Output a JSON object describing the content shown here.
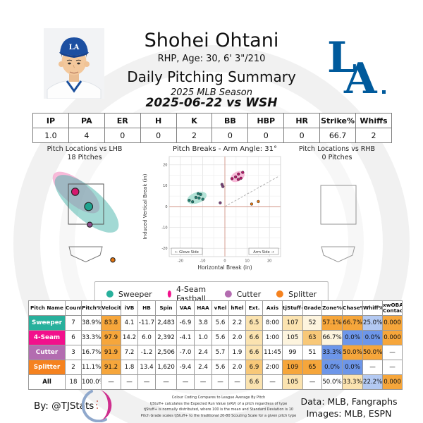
{
  "header": {
    "player_name": "Shohei Ohtani",
    "player_bio": "RHP, Age: 30, 6' 3\"/210",
    "report_title": "Daily Pitching Summary",
    "season": "2025 MLB Season",
    "game": "2025-06-22 vs WSH"
  },
  "palette": {
    "dodger_blue": "#005A9C",
    "sweeper": "#28b09c",
    "fourseam": "#f2108c",
    "cutter": "#b36cb0",
    "splitter": "#f5821f",
    "w": "#ffffff",
    "or": "#f6a63b",
    "mor": "#f8c878",
    "cream": "#fbe3b0",
    "pale": "#fdf4de",
    "blue": "#6d96e9",
    "lblue": "#b3c9f2"
  },
  "stats_table": {
    "columns": [
      "IP",
      "PA",
      "ER",
      "H",
      "K",
      "BB",
      "HBP",
      "HR",
      "Strike%",
      "Whiffs"
    ],
    "values": [
      "1.0",
      "4",
      "0",
      "0",
      "2",
      "0",
      "0",
      "0",
      "66.7",
      "2"
    ]
  },
  "legend": {
    "items": [
      {
        "label": "Sweeper",
        "color": "sweeper"
      },
      {
        "label": "4-Seam Fastball",
        "color": "fourseam"
      },
      {
        "label": "Cutter",
        "color": "cutter"
      },
      {
        "label": "Splitter",
        "color": "splitter"
      }
    ]
  },
  "chart_data": [
    {
      "id": "breaks",
      "type": "scatter",
      "title": "Pitch Breaks - Arm Angle: 31°",
      "xlabel": "Horizontal Break (in)",
      "ylabel": "Induced Vertical Break (in)",
      "xlim": [
        -25,
        25
      ],
      "ylim": [
        -24,
        24
      ],
      "ticks": [
        -20,
        -10,
        0,
        10,
        20
      ],
      "grid_step": 5,
      "arm_angle_deg": 31,
      "glove_side_label": "← Glove Side",
      "arm_side_label": "Arm Side →",
      "series": [
        {
          "name": "Sweeper",
          "color": "sweeper",
          "point_color": "#1d8172",
          "ellipse_fill": "#9fdccd",
          "points": [
            [
              -16,
              3
            ],
            [
              -14.5,
              2.3
            ],
            [
              -13,
              4.4
            ],
            [
              -12,
              6.2
            ],
            [
              -10.9,
              5.8
            ],
            [
              -11.6,
              4.1
            ],
            [
              -9.9,
              3.5
            ]
          ],
          "ellipse": {
            "cx": -12.6,
            "cy": 4.2,
            "rx": 4.6,
            "ry": 2.6,
            "rot": -20
          }
        },
        {
          "name": "4-Seam Fastball",
          "color": "fourseam",
          "point_color": "#b81368",
          "ellipse_fill": "#f8a9d0",
          "points": [
            [
              3.2,
              13.4
            ],
            [
              4.8,
              14.2
            ],
            [
              6.1,
              15.6
            ],
            [
              6.0,
              13.0
            ],
            [
              7.2,
              13.6
            ],
            [
              8.0,
              16.4
            ]
          ],
          "ellipse": {
            "cx": 5.7,
            "cy": 14.4,
            "rx": 3.4,
            "ry": 2.3,
            "rot": -28
          }
        },
        {
          "name": "Cutter",
          "color": "cutter",
          "point_color": "#7c3f7a",
          "ellipse_fill": null,
          "points": [
            [
              -1.3,
              10.6
            ],
            [
              -0.9,
              9.6
            ],
            [
              -2.1,
              1.8
            ]
          ],
          "ellipse": null
        },
        {
          "name": "Splitter",
          "color": "splitter",
          "point_color": "#e2740f",
          "ellipse_fill": null,
          "points": [
            [
              12,
              1.2
            ],
            [
              15,
              2.4
            ]
          ],
          "ellipse": null
        }
      ]
    },
    {
      "id": "loc_lhb",
      "type": "scatter",
      "title": "Pitch Locations vs LHB",
      "subtitle": "18 Pitches",
      "ellipses": [
        {
          "name": "4-Seam Fastball",
          "cx": 73,
          "cy": 70,
          "rx": 41,
          "ry": 17,
          "rot": 40,
          "fill": "#f48fc1",
          "opacity": 0.62
        },
        {
          "name": "Sweeper",
          "cx": 88,
          "cy": 86,
          "rx": 57,
          "ry": 22,
          "rot": 41,
          "fill": "#4db6ac",
          "opacity": 0.52
        }
      ],
      "markers": [
        {
          "name": "4-Seam Fastball",
          "x": 71.7,
          "y": 69,
          "r": 5.2,
          "fill": "#d6186e"
        },
        {
          "name": "Sweeper",
          "x": 90.7,
          "y": 90,
          "r": 5.8,
          "fill": "#20a38f"
        },
        {
          "name": "Cutter",
          "x": 92.3,
          "y": 115.7,
          "r": 3.6,
          "fill": "#8d4f8d"
        },
        {
          "name": "Splitter",
          "x": 125,
          "y": 165.7,
          "r": 3.2,
          "fill": "#e2740f"
        }
      ]
    },
    {
      "id": "loc_rhb",
      "type": "scatter",
      "title": "Pitch Locations vs RHB",
      "subtitle": "0 Pitches",
      "ellipses": [],
      "markers": []
    }
  ],
  "pitch_table": {
    "columns": [
      "Pitch Name",
      "Count",
      "Pitch%",
      "Velocity",
      "iVB",
      "HB",
      "Spin",
      "VAA",
      "HAA",
      "vRel",
      "hRel",
      "Ext.",
      "Axis",
      "tjStuff+",
      "Grade",
      "Zone%",
      "Chase%",
      "Whiff%",
      "xwOBA\nContact"
    ],
    "rows": [
      {
        "name": "Sweeper",
        "color": "sweeper",
        "text": "#ffffff",
        "cells": [
          "7",
          "38.9%",
          "83.8",
          "4.1",
          "-11.7",
          "2,483",
          "-6.9",
          "3.8",
          "5.6",
          "2.2",
          "6.5",
          "8:00",
          "107",
          "52",
          "57.1%",
          "66.7%",
          "25.0%",
          "0.000"
        ],
        "hl": [
          "w",
          "w",
          "or",
          "w",
          "w",
          "w",
          "w",
          "w",
          "w",
          "w",
          "cream",
          "w",
          "cream",
          "pale",
          "or",
          "or",
          "lblue",
          "or"
        ]
      },
      {
        "name": "4-Seam",
        "color": "fourseam",
        "text": "#ffffff",
        "cells": [
          "6",
          "33.3%",
          "97.9",
          "14.2",
          "6.0",
          "2,392",
          "-4.1",
          "1.0",
          "5.6",
          "2.0",
          "6.6",
          "1:00",
          "105",
          "63",
          "66.7%",
          "0.0%",
          "0.0%",
          "0.000"
        ],
        "hl": [
          "w",
          "w",
          "or",
          "w",
          "w",
          "w",
          "w",
          "w",
          "w",
          "w",
          "cream",
          "w",
          "pale",
          "mor",
          "pale",
          "blue",
          "blue",
          "or"
        ]
      },
      {
        "name": "Cutter",
        "color": "cutter",
        "text": "#ffffff",
        "cells": [
          "3",
          "16.7%",
          "91.9",
          "7.2",
          "-1.2",
          "2,506",
          "-7.0",
          "2.4",
          "5.7",
          "1.9",
          "6.6",
          "11:45",
          "99",
          "51",
          "33.3%",
          "50.0%",
          "50.0%",
          "—"
        ],
        "hl": [
          "w",
          "w",
          "or",
          "w",
          "w",
          "w",
          "w",
          "w",
          "w",
          "w",
          "cream",
          "w",
          "w",
          "w",
          "blue",
          "or",
          "or",
          "w"
        ]
      },
      {
        "name": "Splitter",
        "color": "splitter",
        "text": "#ffffff",
        "cells": [
          "2",
          "11.1%",
          "91.2",
          "1.8",
          "13.4",
          "1,620",
          "-9.4",
          "2.4",
          "5.6",
          "2.0",
          "6.9",
          "2:00",
          "109",
          "65",
          "0.0%",
          "0.0%",
          "—",
          "—"
        ],
        "hl": [
          "w",
          "w",
          "or",
          "w",
          "w",
          "w",
          "w",
          "w",
          "w",
          "w",
          "mor",
          "w",
          "or",
          "or",
          "blue",
          "blue",
          "w",
          "w"
        ]
      },
      {
        "name": "All",
        "color": "w",
        "text": "#111111",
        "cells": [
          "18",
          "100.0%",
          "—",
          "—",
          "—",
          "—",
          "—",
          "—",
          "—",
          "—",
          "6.6",
          "—",
          "105",
          "—",
          "50.0%",
          "33.3%",
          "22.2%",
          "0.000"
        ],
        "hl": [
          "w",
          "w",
          "w",
          "w",
          "w",
          "w",
          "w",
          "w",
          "w",
          "w",
          "cream",
          "w",
          "cream",
          "w",
          "w",
          "cream",
          "lblue",
          "or"
        ]
      }
    ]
  },
  "footer": {
    "by": "By: @TJStats",
    "notes": [
      "Colour Coding Compares to League Average By Pitch",
      "tjStuff+ calculates the Expected Run Value (xRV) of a pitch regardless of type",
      "tjStuff+ is normally distributed, where 100 is the mean and Standard Deviation is 10",
      "Pitch Grade scales tjStuff+ to the traditional 20-80 Scouting Scale for a given pitch type"
    ],
    "credit_data": "Data: MLB, Fangraphs",
    "credit_images": "Images: MLB, ESPN"
  }
}
